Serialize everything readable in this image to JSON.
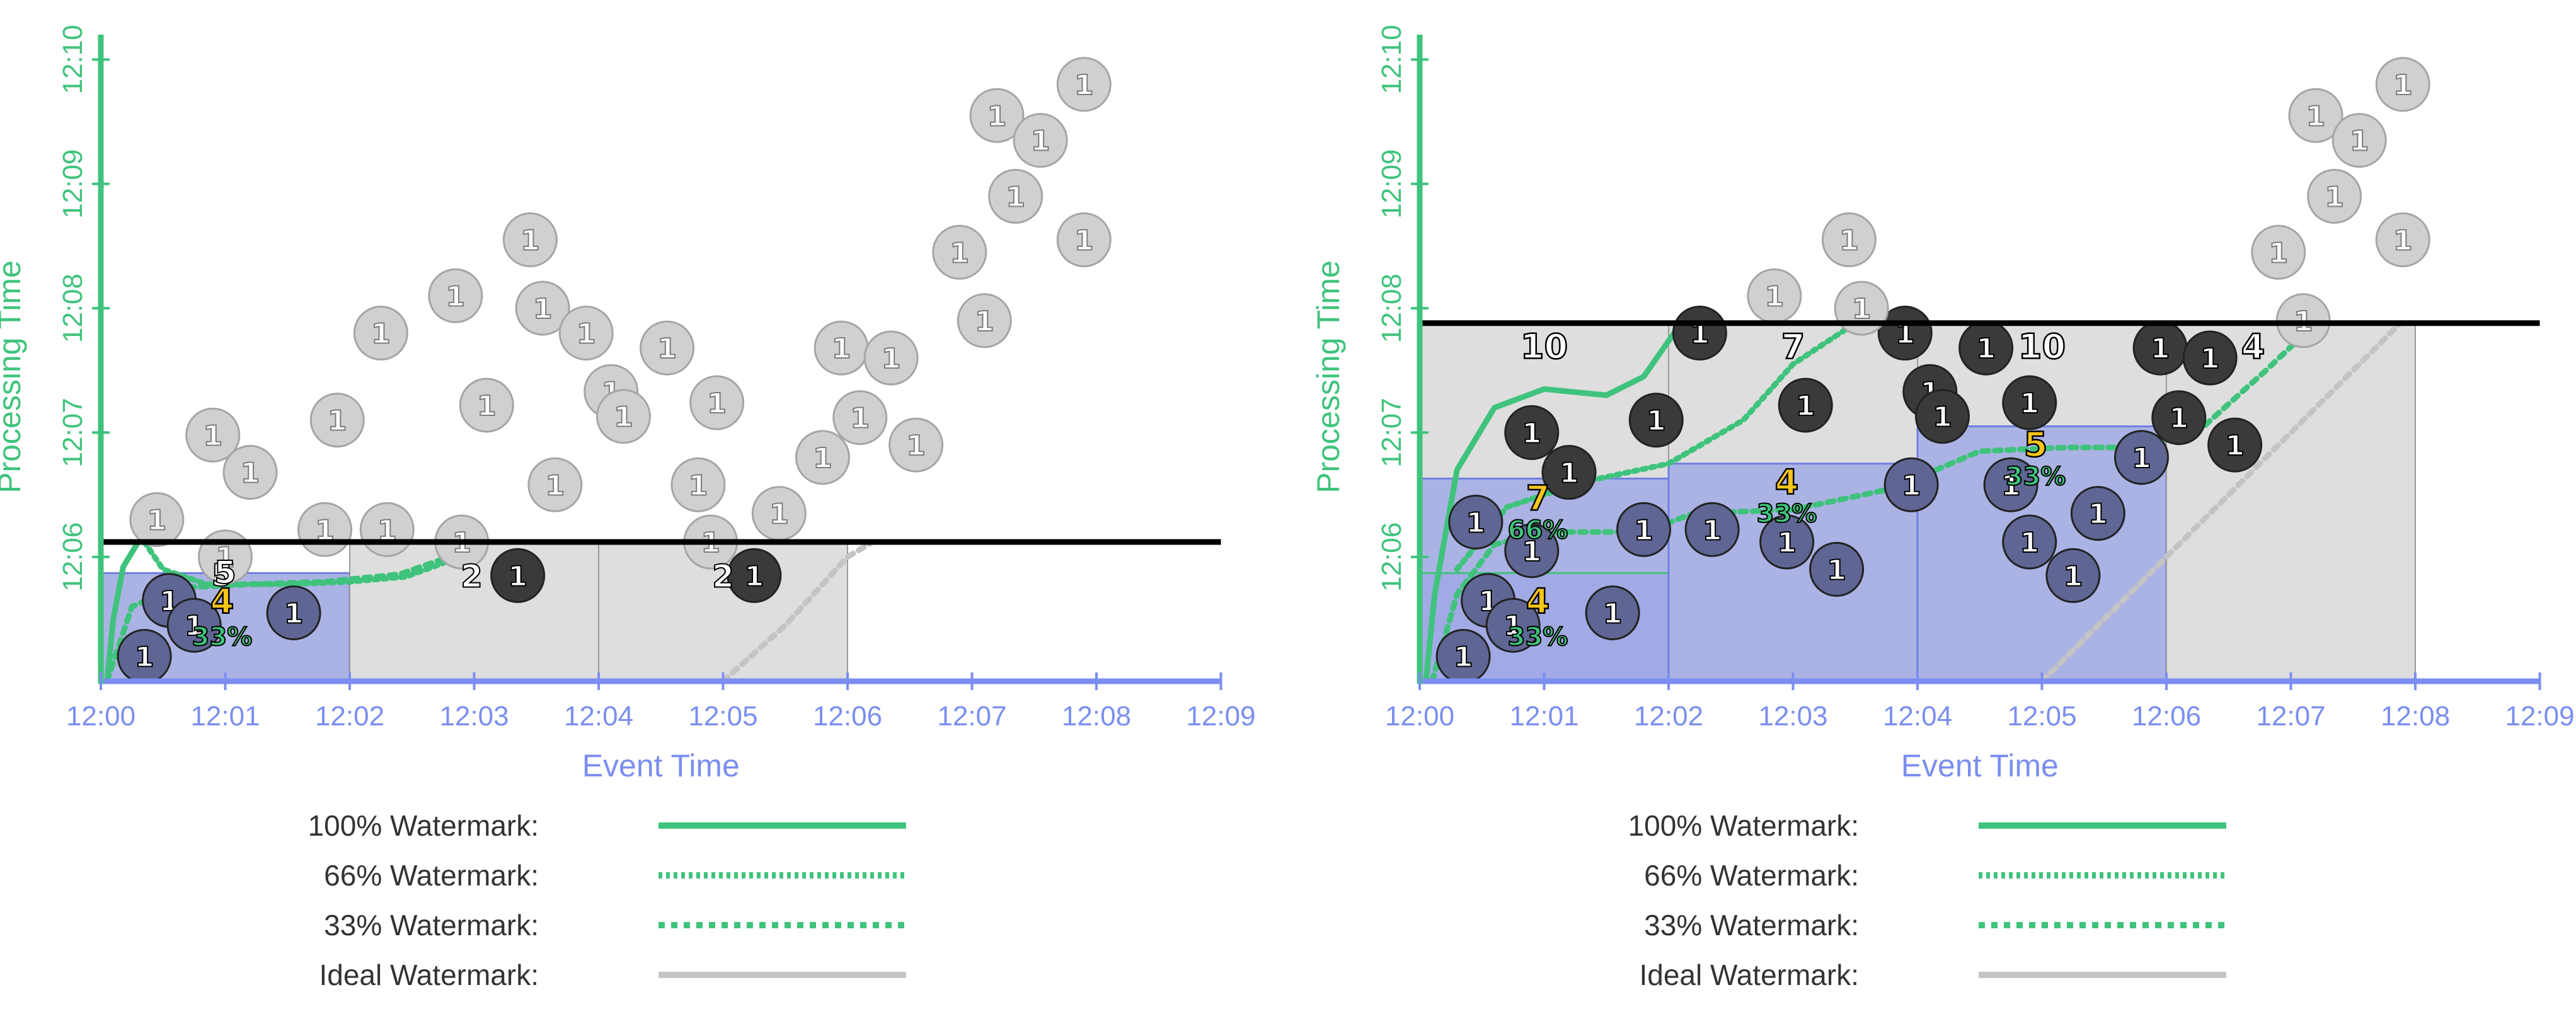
{
  "colors": {
    "axis_x": "#7b8ef0",
    "axis_y": "#3fc37c",
    "pane_fill": "#8f9be6",
    "pane_stroke": "#6f7fe0",
    "pending_fill": "#dedede",
    "pending_stroke": "#9a9a9a",
    "elem_future": "#d0d0d0",
    "elem_late": "#3a3a3a",
    "elem_ontime": "#5f6694",
    "result_yellow": "#f5c518",
    "percent_green": "#3fc37c",
    "ideal": "#c4c4c4",
    "processing_line": "#000000"
  },
  "legend": [
    {
      "label": "100% Watermark:",
      "style": "solid",
      "color": "#3fc37c"
    },
    {
      "label": "66% Watermark:",
      "style": "dotted",
      "color": "#3fc37c"
    },
    {
      "label": "33% Watermark:",
      "style": "dashed",
      "color": "#3fc37c"
    },
    {
      "label": "Ideal Watermark:",
      "style": "solid",
      "color": "#c4c4c4"
    }
  ],
  "chart_data": [
    {
      "type": "scatter",
      "title": "",
      "xlabel": "Event Time",
      "ylabel": "Processing Time",
      "x_ticks": [
        "12:00",
        "12:01",
        "12:02",
        "12:03",
        "12:04",
        "12:05",
        "12:06",
        "12:07",
        "12:08",
        "12:09"
      ],
      "y_ticks": [
        "12:06",
        "12:07",
        "12:08",
        "12:09",
        "12:10"
      ],
      "xlim_minutes": [
        0,
        9
      ],
      "ylim_minutes": [
        5.0,
        10.2
      ],
      "current_processing_time": 6.12,
      "windows": [
        {
          "x0": 0,
          "x1": 2,
          "pane_top": 5.87,
          "pending_top": 5.87,
          "value": 4,
          "percent": "33%",
          "value2": 5
        },
        {
          "x0": 2,
          "x1": 4,
          "pane_top": null,
          "pending_top": 6.12,
          "value": 2
        },
        {
          "x0": 4,
          "x1": 6,
          "pane_top": null,
          "pending_top": 6.12,
          "value": 2
        }
      ],
      "series": [
        {
          "name": "100% Watermark",
          "points": [
            [
              0.05,
              5.0
            ],
            [
              0.1,
              5.5
            ],
            [
              0.18,
              5.92
            ],
            [
              0.3,
              6.12
            ]
          ]
        },
        {
          "name": "66% Watermark",
          "points": [
            [
              0.35,
              6.12
            ],
            [
              0.5,
              5.9
            ],
            [
              0.85,
              5.78
            ],
            [
              1.5,
              5.78
            ],
            [
              2.0,
              5.8
            ],
            [
              2.45,
              5.84
            ],
            [
              2.75,
              5.95
            ],
            [
              3.0,
              6.12
            ]
          ]
        },
        {
          "name": "33% Watermark",
          "points": [
            [
              0.05,
              5.0
            ],
            [
              0.25,
              5.6
            ],
            [
              0.6,
              5.75
            ],
            [
              1.2,
              5.78
            ],
            [
              1.8,
              5.8
            ],
            [
              2.4,
              5.86
            ],
            [
              2.8,
              6.0
            ],
            [
              3.05,
              6.12
            ]
          ]
        },
        {
          "name": "Ideal Watermark",
          "points": [
            [
              5.0,
              5.0
            ],
            [
              5.5,
              5.45
            ],
            [
              6.0,
              6.0
            ],
            [
              6.2,
              6.12
            ]
          ]
        }
      ],
      "elements": [
        {
          "x": 0.35,
          "y": 5.2,
          "v": "1",
          "k": "ontime"
        },
        {
          "x": 0.55,
          "y": 5.65,
          "v": "1",
          "k": "ontime"
        },
        {
          "x": 0.75,
          "y": 5.45,
          "v": "1",
          "k": "ontime"
        },
        {
          "x": 1.55,
          "y": 5.55,
          "v": "1",
          "k": "ontime"
        },
        {
          "x": 0.45,
          "y": 6.3,
          "v": "1",
          "k": "future"
        },
        {
          "x": 0.9,
          "y": 6.98,
          "v": "1",
          "k": "future"
        },
        {
          "x": 1.2,
          "y": 6.68,
          "v": "1",
          "k": "future"
        },
        {
          "x": 1.0,
          "y": 6.0,
          "v": "1",
          "k": "future"
        },
        {
          "x": 1.8,
          "y": 6.22,
          "v": "1",
          "k": "future"
        },
        {
          "x": 1.9,
          "y": 7.1,
          "v": "1",
          "k": "future"
        },
        {
          "x": 2.25,
          "y": 7.8,
          "v": "1",
          "k": "future"
        },
        {
          "x": 2.3,
          "y": 6.22,
          "v": "1",
          "k": "future"
        },
        {
          "x": 2.85,
          "y": 8.1,
          "v": "1",
          "k": "future"
        },
        {
          "x": 2.9,
          "y": 6.12,
          "v": "1",
          "k": "future"
        },
        {
          "x": 3.1,
          "y": 7.22,
          "v": "1",
          "k": "future"
        },
        {
          "x": 3.45,
          "y": 8.55,
          "v": "1",
          "k": "future"
        },
        {
          "x": 3.55,
          "y": 8.0,
          "v": "1",
          "k": "future"
        },
        {
          "x": 3.65,
          "y": 6.58,
          "v": "1",
          "k": "future"
        },
        {
          "x": 3.9,
          "y": 7.8,
          "v": "1",
          "k": "future"
        },
        {
          "x": 4.1,
          "y": 7.33,
          "v": "1",
          "k": "future"
        },
        {
          "x": 4.2,
          "y": 7.13,
          "v": "1",
          "k": "future"
        },
        {
          "x": 4.55,
          "y": 7.68,
          "v": "1",
          "k": "future"
        },
        {
          "x": 4.8,
          "y": 6.58,
          "v": "1",
          "k": "future"
        },
        {
          "x": 4.9,
          "y": 6.12,
          "v": "1",
          "k": "future"
        },
        {
          "x": 4.95,
          "y": 7.24,
          "v": "1",
          "k": "future"
        },
        {
          "x": 5.45,
          "y": 6.35,
          "v": "1",
          "k": "future"
        },
        {
          "x": 5.8,
          "y": 6.8,
          "v": "1",
          "k": "future"
        },
        {
          "x": 5.95,
          "y": 7.68,
          "v": "1",
          "k": "future"
        },
        {
          "x": 6.1,
          "y": 7.12,
          "v": "1",
          "k": "future"
        },
        {
          "x": 6.35,
          "y": 7.6,
          "v": "1",
          "k": "future"
        },
        {
          "x": 6.55,
          "y": 6.9,
          "v": "1",
          "k": "future"
        },
        {
          "x": 6.9,
          "y": 8.45,
          "v": "1",
          "k": "future"
        },
        {
          "x": 7.1,
          "y": 7.9,
          "v": "1",
          "k": "future"
        },
        {
          "x": 7.2,
          "y": 9.55,
          "v": "1",
          "k": "future"
        },
        {
          "x": 7.35,
          "y": 8.9,
          "v": "1",
          "k": "future"
        },
        {
          "x": 7.55,
          "y": 9.35,
          "v": "1",
          "k": "future"
        },
        {
          "x": 7.9,
          "y": 9.8,
          "v": "1",
          "k": "future"
        },
        {
          "x": 7.9,
          "y": 8.55,
          "v": "1",
          "k": "future"
        },
        {
          "x": 3.35,
          "y": 5.85,
          "v": "1",
          "k": "late"
        },
        {
          "x": 5.25,
          "y": 5.85,
          "v": "1",
          "k": "late"
        }
      ],
      "labels": [
        {
          "x": 1.0,
          "y": 5.88,
          "text": "5",
          "kind": "white"
        },
        {
          "x": 2.98,
          "y": 5.85,
          "text": "2",
          "kind": "white"
        },
        {
          "x": 5.0,
          "y": 5.85,
          "text": "2",
          "kind": "white"
        }
      ]
    },
    {
      "type": "scatter",
      "title": "",
      "xlabel": "Event Time",
      "ylabel": "Processing Time",
      "x_ticks": [
        "12:00",
        "12:01",
        "12:02",
        "12:03",
        "12:04",
        "12:05",
        "12:06",
        "12:07",
        "12:08",
        "12:09"
      ],
      "y_ticks": [
        "12:06",
        "12:07",
        "12:08",
        "12:09",
        "12:10"
      ],
      "xlim_minutes": [
        0,
        9
      ],
      "ylim_minutes": [
        5.0,
        10.2
      ],
      "current_processing_time": 7.88,
      "windows": [
        {
          "x0": 0,
          "x1": 2,
          "pane_top": 6.63,
          "pane2_top": 5.87,
          "pending_top": 7.88,
          "value": 10,
          "result": 7,
          "percent": "66%",
          "result2": 4,
          "percent2": "33%"
        },
        {
          "x0": 2,
          "x1": 4,
          "pane_top": 6.75,
          "pending_top": 7.88,
          "value": 7,
          "result": 4,
          "percent": "33%"
        },
        {
          "x0": 4,
          "x1": 6,
          "pane_top": 7.05,
          "pending_top": 7.88,
          "value": 10,
          "result": 5,
          "percent": "33%"
        },
        {
          "x0": 6,
          "x1": 8,
          "pane_top": null,
          "pending_top": 7.88,
          "value": 4
        }
      ],
      "series": [
        {
          "name": "100% Watermark",
          "points": [
            [
              0.05,
              5.0
            ],
            [
              0.12,
              5.7
            ],
            [
              0.3,
              6.7
            ],
            [
              0.6,
              7.2
            ],
            [
              1.0,
              7.35
            ],
            [
              1.5,
              7.3
            ],
            [
              1.8,
              7.45
            ],
            [
              2.1,
              7.88
            ]
          ]
        },
        {
          "name": "66% Watermark",
          "points": [
            [
              0.3,
              5.9
            ],
            [
              0.7,
              6.4
            ],
            [
              1.3,
              6.6
            ],
            [
              2.0,
              6.75
            ],
            [
              2.6,
              7.1
            ],
            [
              3.0,
              7.55
            ],
            [
              3.5,
              7.88
            ]
          ]
        },
        {
          "name": "33% Watermark",
          "points": [
            [
              0.1,
              5.0
            ],
            [
              0.3,
              5.7
            ],
            [
              0.6,
              6.1
            ],
            [
              1.0,
              6.2
            ],
            [
              1.8,
              6.2
            ],
            [
              2.2,
              6.35
            ],
            [
              3.0,
              6.38
            ],
            [
              3.8,
              6.55
            ],
            [
              4.5,
              6.85
            ],
            [
              5.2,
              6.88
            ],
            [
              5.8,
              6.88
            ],
            [
              6.3,
              7.05
            ],
            [
              6.8,
              7.5
            ],
            [
              7.2,
              7.88
            ]
          ]
        },
        {
          "name": "Ideal Watermark",
          "points": [
            [
              5.0,
              5.0
            ],
            [
              6.0,
              6.0
            ],
            [
              7.0,
              7.0
            ],
            [
              7.88,
              7.88
            ]
          ]
        }
      ],
      "elements": [
        {
          "x": 0.35,
          "y": 5.2,
          "v": "1",
          "k": "ontime"
        },
        {
          "x": 0.55,
          "y": 5.65,
          "v": "1",
          "k": "ontime"
        },
        {
          "x": 0.75,
          "y": 5.45,
          "v": "1",
          "k": "ontime"
        },
        {
          "x": 0.45,
          "y": 6.28,
          "v": "1",
          "k": "ontime"
        },
        {
          "x": 0.9,
          "y": 6.05,
          "v": "1",
          "k": "ontime"
        },
        {
          "x": 1.55,
          "y": 5.55,
          "v": "1",
          "k": "ontime"
        },
        {
          "x": 1.8,
          "y": 6.22,
          "v": "1",
          "k": "ontime"
        },
        {
          "x": 2.35,
          "y": 6.22,
          "v": "1",
          "k": "ontime"
        },
        {
          "x": 2.95,
          "y": 6.12,
          "v": "1",
          "k": "ontime"
        },
        {
          "x": 3.35,
          "y": 5.9,
          "v": "1",
          "k": "ontime"
        },
        {
          "x": 3.95,
          "y": 6.58,
          "v": "1",
          "k": "ontime"
        },
        {
          "x": 4.75,
          "y": 6.58,
          "v": "1",
          "k": "ontime"
        },
        {
          "x": 4.9,
          "y": 6.12,
          "v": "1",
          "k": "ontime"
        },
        {
          "x": 5.25,
          "y": 5.85,
          "v": "1",
          "k": "ontime"
        },
        {
          "x": 5.45,
          "y": 6.35,
          "v": "1",
          "k": "ontime"
        },
        {
          "x": 5.8,
          "y": 6.8,
          "v": "1",
          "k": "ontime"
        },
        {
          "x": 0.9,
          "y": 7.0,
          "v": "1",
          "k": "late"
        },
        {
          "x": 1.2,
          "y": 6.68,
          "v": "1",
          "k": "late"
        },
        {
          "x": 1.9,
          "y": 7.1,
          "v": "1",
          "k": "late"
        },
        {
          "x": 2.25,
          "y": 7.8,
          "v": "1",
          "k": "late"
        },
        {
          "x": 3.1,
          "y": 7.22,
          "v": "1",
          "k": "late"
        },
        {
          "x": 3.9,
          "y": 7.8,
          "v": "1",
          "k": "late"
        },
        {
          "x": 4.1,
          "y": 7.33,
          "v": "1",
          "k": "late"
        },
        {
          "x": 4.2,
          "y": 7.13,
          "v": "1",
          "k": "late"
        },
        {
          "x": 4.55,
          "y": 7.68,
          "v": "1",
          "k": "late"
        },
        {
          "x": 4.9,
          "y": 7.24,
          "v": "1",
          "k": "late"
        },
        {
          "x": 5.95,
          "y": 7.68,
          "v": "1",
          "k": "late"
        },
        {
          "x": 6.1,
          "y": 7.12,
          "v": "1",
          "k": "late"
        },
        {
          "x": 6.35,
          "y": 7.6,
          "v": "1",
          "k": "late"
        },
        {
          "x": 6.55,
          "y": 6.9,
          "v": "1",
          "k": "late"
        },
        {
          "x": 2.85,
          "y": 8.1,
          "v": "1",
          "k": "future"
        },
        {
          "x": 3.45,
          "y": 8.55,
          "v": "1",
          "k": "future"
        },
        {
          "x": 3.55,
          "y": 8.0,
          "v": "1",
          "k": "future"
        },
        {
          "x": 6.9,
          "y": 8.45,
          "v": "1",
          "k": "future"
        },
        {
          "x": 7.1,
          "y": 7.9,
          "v": "1",
          "k": "future"
        },
        {
          "x": 7.2,
          "y": 9.55,
          "v": "1",
          "k": "future"
        },
        {
          "x": 7.35,
          "y": 8.9,
          "v": "1",
          "k": "future"
        },
        {
          "x": 7.55,
          "y": 9.35,
          "v": "1",
          "k": "future"
        },
        {
          "x": 7.9,
          "y": 9.8,
          "v": "1",
          "k": "future"
        },
        {
          "x": 7.9,
          "y": 8.55,
          "v": "1",
          "k": "future"
        }
      ],
      "labels": []
    }
  ]
}
